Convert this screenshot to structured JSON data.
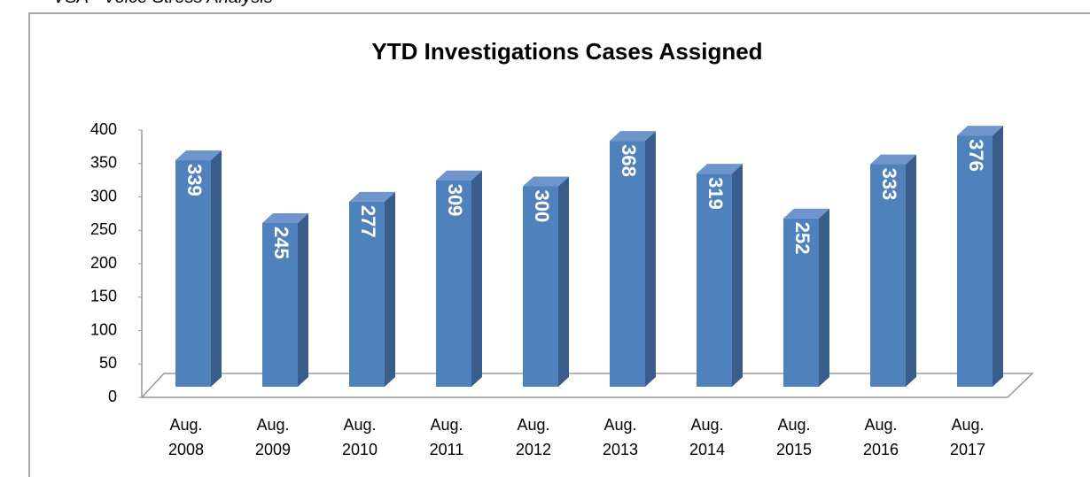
{
  "caption": "VSA - Voice Stress Analysis",
  "chart_data": {
    "type": "bar3d",
    "title": "YTD Investigations Cases Assigned",
    "categories": [
      "Aug. 2008",
      "Aug. 2009",
      "Aug. 2010",
      "Aug. 2011",
      "Aug. 2012",
      "Aug. 2013",
      "Aug. 2014",
      "Aug. 2015",
      "Aug. 2016",
      "Aug. 2017"
    ],
    "values": [
      339,
      245,
      277,
      309,
      300,
      368,
      319,
      252,
      333,
      376
    ],
    "color": "#4f81bd",
    "ylim": [
      0,
      400
    ],
    "yticks": [
      0,
      50,
      100,
      150,
      200,
      250,
      300,
      350,
      400
    ],
    "grid": false
  }
}
